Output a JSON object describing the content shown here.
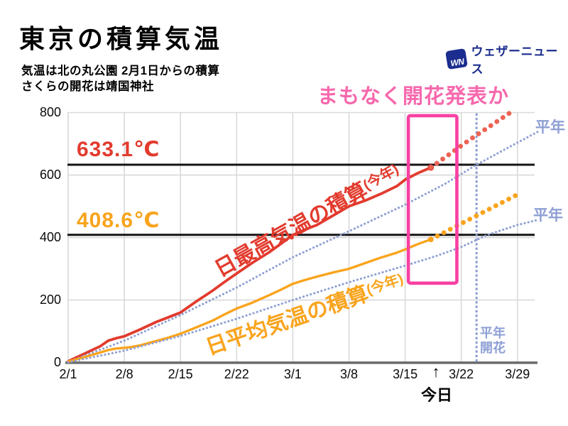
{
  "header": {
    "title": "東京の積算気温",
    "subtitle_line1": "気温は北の丸公園 2月1日からの積算",
    "subtitle_line2": "さくらの開花は靖国神社",
    "logo": {
      "mark": "WN",
      "text": "ウェザーニュース",
      "color": "#1b2d8f"
    }
  },
  "annotations": {
    "callout": "まもなく開花発表か",
    "today_arrow": "↑",
    "today_label": "今日",
    "normal_label_max": "平年",
    "normal_label_mean": "平年",
    "normal_bloom_line1": "平年",
    "normal_bloom_line2": "開花"
  },
  "colors": {
    "red": "#e23b2e",
    "red_forecast": "#ec6354",
    "orange": "#f9a41d",
    "pink_text": "#f768ad",
    "pink_box": "#f840a2",
    "normal_blue": "#8e9fd4",
    "navy": "#1b2d8f",
    "grid": "#d9d9d9",
    "axis": "#6a6a6a",
    "threshold_line": "#141414"
  },
  "chart_data": {
    "type": "line",
    "title": "東京の積算気温",
    "x_axis": {
      "unit": "date",
      "ticks": [
        {
          "day": 0,
          "label": "2/1"
        },
        {
          "day": 7,
          "label": "2/8"
        },
        {
          "day": 14,
          "label": "2/15"
        },
        {
          "day": 21,
          "label": "2/22"
        },
        {
          "day": 28,
          "label": "3/1"
        },
        {
          "day": 35,
          "label": "3/8"
        },
        {
          "day": 42,
          "label": "3/15"
        },
        {
          "day": 49,
          "label": "3/22"
        },
        {
          "day": 56,
          "label": "3/29"
        }
      ]
    },
    "y_axis": {
      "min": 0,
      "max": 800,
      "ticks": [
        0,
        200,
        400,
        600,
        800
      ],
      "grid": true
    },
    "thresholds": [
      {
        "value": 633.1,
        "label": "633.1℃",
        "color": "#e23b2e",
        "series": "max"
      },
      {
        "value": 408.6,
        "label": "408.6℃",
        "color": "#f9a41d",
        "series": "mean"
      }
    ],
    "today_day": 45.7,
    "normal_bloom_day": 50.9,
    "highlight_box": {
      "day_from": 42.4,
      "day_to": 48.45,
      "value_from": 254,
      "value_to": 790
    },
    "series": [
      {
        "id": "max_this_year",
        "label": "日最高気温の積算",
        "label_suffix": "(今年)",
        "style": "solid",
        "color": "#e23b2e",
        "end_dot": true,
        "points": [
          [
            0,
            4
          ],
          [
            2,
            28
          ],
          [
            4,
            52
          ],
          [
            5,
            70
          ],
          [
            6,
            78
          ],
          [
            7,
            84
          ],
          [
            9,
            106
          ],
          [
            11,
            130
          ],
          [
            12.5,
            145
          ],
          [
            14,
            160
          ],
          [
            16,
            196
          ],
          [
            18,
            230
          ],
          [
            19.5,
            258
          ],
          [
            21,
            285
          ],
          [
            23,
            320
          ],
          [
            25,
            352
          ],
          [
            26.5,
            380
          ],
          [
            28,
            408
          ],
          [
            29.5,
            425
          ],
          [
            31,
            440
          ],
          [
            33,
            470
          ],
          [
            35,
            500
          ],
          [
            37,
            518
          ],
          [
            39,
            540
          ],
          [
            41,
            565
          ],
          [
            42,
            585
          ],
          [
            43.5,
            605
          ],
          [
            45.2,
            624
          ]
        ]
      },
      {
        "id": "max_forecast",
        "style": "dots",
        "color": "#ec6354",
        "end_dot": false,
        "points": [
          [
            45.2,
            624
          ],
          [
            50,
            712
          ],
          [
            55,
            798
          ]
        ]
      },
      {
        "id": "max_normal",
        "label": "平年",
        "style": "fine_dots",
        "color": "#8e9fd4",
        "end_dot": false,
        "points": [
          [
            0,
            2
          ],
          [
            7,
            70
          ],
          [
            14,
            152
          ],
          [
            21,
            240
          ],
          [
            28,
            337
          ],
          [
            35,
            420
          ],
          [
            42,
            505
          ],
          [
            47,
            572
          ],
          [
            50.9,
            633
          ],
          [
            53,
            662
          ],
          [
            55,
            690
          ],
          [
            58.5,
            738
          ]
        ]
      },
      {
        "id": "mean_this_year",
        "label": "日平均気温の積算",
        "label_suffix": "(今年)",
        "style": "solid",
        "color": "#f9a41d",
        "end_dot": true,
        "points": [
          [
            0,
            3
          ],
          [
            2,
            17
          ],
          [
            4,
            32
          ],
          [
            5,
            40
          ],
          [
            6,
            45
          ],
          [
            7,
            47
          ],
          [
            8,
            50
          ],
          [
            9,
            55
          ],
          [
            10,
            62
          ],
          [
            12,
            76
          ],
          [
            14,
            92
          ],
          [
            16,
            113
          ],
          [
            18,
            134
          ],
          [
            19.5,
            154
          ],
          [
            21,
            173
          ],
          [
            23,
            192
          ],
          [
            25,
            215
          ],
          [
            26.5,
            233
          ],
          [
            28,
            252
          ],
          [
            29.5,
            264
          ],
          [
            31,
            275
          ],
          [
            33,
            288
          ],
          [
            35,
            300
          ],
          [
            37,
            318
          ],
          [
            39,
            336
          ],
          [
            41,
            352
          ],
          [
            42,
            362
          ],
          [
            43.5,
            378
          ],
          [
            45.2,
            394
          ]
        ]
      },
      {
        "id": "mean_forecast",
        "style": "dots",
        "color": "#f9a41d",
        "end_dot": false,
        "points": [
          [
            45.2,
            394
          ],
          [
            50,
            458
          ],
          [
            56.2,
            540
          ]
        ]
      },
      {
        "id": "mean_normal",
        "label": "平年",
        "style": "fine_dots",
        "color": "#8e9fd4",
        "end_dot": false,
        "points": [
          [
            0,
            1
          ],
          [
            7,
            38
          ],
          [
            14,
            85
          ],
          [
            21,
            140
          ],
          [
            28,
            200
          ],
          [
            35,
            257
          ],
          [
            42,
            310
          ],
          [
            46,
            342
          ],
          [
            49,
            370
          ],
          [
            52.3,
            409
          ],
          [
            56,
            440
          ],
          [
            58.3,
            455
          ]
        ]
      }
    ]
  }
}
